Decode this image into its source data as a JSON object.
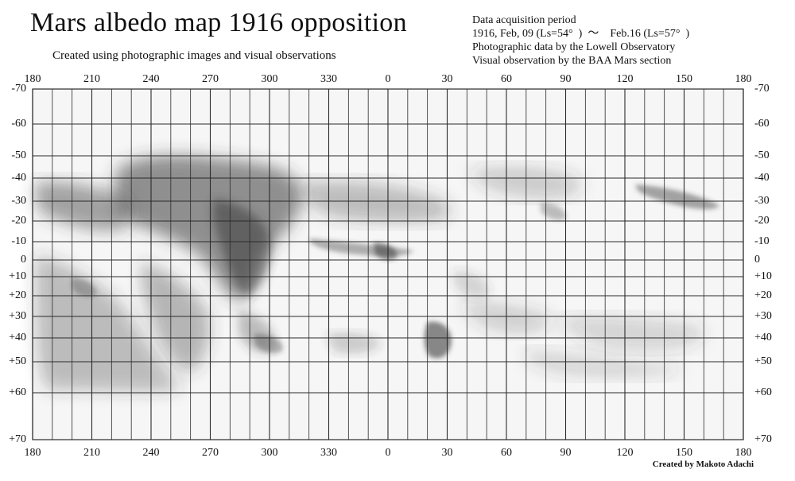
{
  "title": "Mars albedo map 1916 opposition",
  "subtitle": "Created using photographic images and visual observations",
  "info": {
    "line1": "Data acquisition period",
    "line2": "1916, Feb, 09 (Ls=54°  )  ～    Feb.16 (Ls=57°  )",
    "line3": "Photographic data by the Lowell Observatory",
    "line4": "Visual observation by the BAA Mars section"
  },
  "longitude_labels": [
    "180",
    "210",
    "240",
    "270",
    "300",
    "330",
    "0",
    "30",
    "60",
    "90",
    "120",
    "150",
    "180"
  ],
  "latitude_labels": [
    {
      "label": "-70",
      "lat": -70
    },
    {
      "label": "-60",
      "lat": -60
    },
    {
      "label": "-50",
      "lat": -50
    },
    {
      "label": "-40",
      "lat": -40
    },
    {
      "label": "-30",
      "lat": -30
    },
    {
      "label": "-20",
      "lat": -20
    },
    {
      "label": "-10",
      "lat": -10
    },
    {
      "label": "0",
      "lat": 0
    },
    {
      "label": "+10",
      "lat": 10
    },
    {
      "label": "+20",
      "lat": 20
    },
    {
      "label": "+30",
      "lat": 30
    },
    {
      "label": "+40",
      "lat": 40
    },
    {
      "label": "+50",
      "lat": 50
    },
    {
      "label": "+60",
      "lat": 60
    },
    {
      "label": "+70",
      "lat": 70
    }
  ],
  "credit": "Created by Makoto Adachi",
  "colors": {
    "grid": "#2a2a2a",
    "shading": "#3c3c3c",
    "paper": "#f6f6f6"
  }
}
